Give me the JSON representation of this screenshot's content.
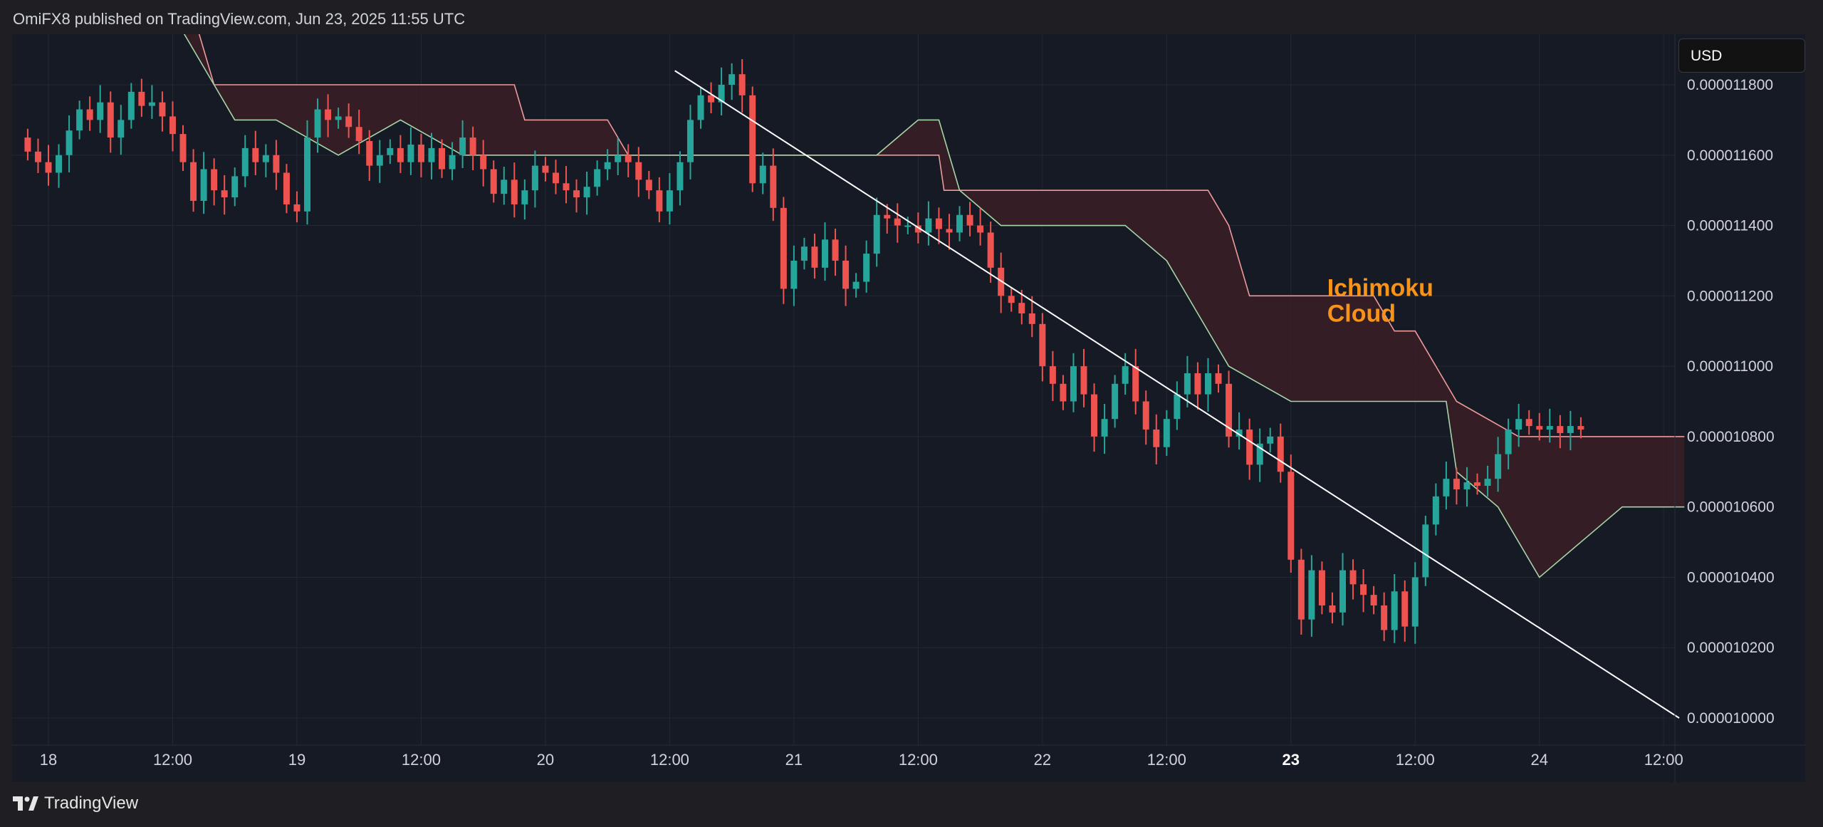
{
  "header": {
    "publish_line": "OmiFX8 published on TradingView.com, Jun 23, 2025 11:55 UTC"
  },
  "currency_label": "USD",
  "brand": {
    "name": "TradingView",
    "icon": "tradingview-logo-icon"
  },
  "colors": {
    "background": "#161a25",
    "page": "#1f1f23",
    "up": "#26a69a",
    "down": "#ef5350",
    "cloud_fill": "#3a1f26",
    "span_a": "#a5d6a7",
    "span_b": "#ef9a9a",
    "trendline": "#ffffff",
    "annotation": "#f7931a",
    "grid": "#242832"
  },
  "chart_data": {
    "type": "candlestick",
    "title": "",
    "xlabel": "",
    "ylabel": "",
    "ylim": [
      9.9e-07,
      1.2e-06
    ],
    "grid": true,
    "y_ticks": [
      "0.000011800",
      "0.000011600",
      "0.000011400",
      "0.000011200",
      "0.000011000",
      "0.000010800",
      "0.000010600",
      "0.000010400",
      "0.000010200",
      "0.000010000"
    ],
    "y_tick_values": [
      1.18e-05,
      1.16e-05,
      1.14e-05,
      1.12e-05,
      1.1e-05,
      1.08e-05,
      1.06e-05,
      1.04e-05,
      1.02e-05,
      1e-05
    ],
    "x_ticks": [
      {
        "label": "18",
        "t": 0,
        "bold": false
      },
      {
        "label": "12:00",
        "t": 12,
        "bold": false
      },
      {
        "label": "19",
        "t": 24,
        "bold": false
      },
      {
        "label": "12:00",
        "t": 36,
        "bold": false
      },
      {
        "label": "20",
        "t": 48,
        "bold": false
      },
      {
        "label": "12:00",
        "t": 60,
        "bold": false
      },
      {
        "label": "21",
        "t": 72,
        "bold": false
      },
      {
        "label": "12:00",
        "t": 84,
        "bold": false
      },
      {
        "label": "22",
        "t": 96,
        "bold": false
      },
      {
        "label": "12:00",
        "t": 108,
        "bold": false
      },
      {
        "label": "23",
        "t": 120,
        "bold": true
      },
      {
        "label": "12:00",
        "t": 132,
        "bold": false
      },
      {
        "label": "24",
        "t": 144,
        "bold": false
      },
      {
        "label": "12:00",
        "t": 156,
        "bold": false
      }
    ],
    "x_unit": "hours since Jun 18 00:00",
    "candle_interval_hours": 1,
    "candles_start_t": -2,
    "ohlc_close": [
      1.161e-05,
      1.158e-05,
      1.155e-05,
      1.16e-05,
      1.167e-05,
      1.173e-05,
      1.17e-05,
      1.175e-05,
      1.165e-05,
      1.17e-05,
      1.178e-05,
      1.174e-05,
      1.175e-05,
      1.171e-05,
      1.166e-05,
      1.158e-05,
      1.147e-05,
      1.156e-05,
      1.15e-05,
      1.148e-05,
      1.154e-05,
      1.162e-05,
      1.158e-05,
      1.16e-05,
      1.155e-05,
      1.146e-05,
      1.144e-05,
      1.165e-05,
      1.173e-05,
      1.17e-05,
      1.171e-05,
      1.168e-05,
      1.164e-05,
      1.157e-05,
      1.16e-05,
      1.162e-05,
      1.158e-05,
      1.163e-05,
      1.158e-05,
      1.162e-05,
      1.156e-05,
      1.16e-05,
      1.165e-05,
      1.16e-05,
      1.156e-05,
      1.149e-05,
      1.153e-05,
      1.146e-05,
      1.15e-05,
      1.157e-05,
      1.155e-05,
      1.152e-05,
      1.15e-05,
      1.148e-05,
      1.151e-05,
      1.156e-05,
      1.158e-05,
      1.16e-05,
      1.158e-05,
      1.153e-05,
      1.15e-05,
      1.144e-05,
      1.15e-05,
      1.158e-05,
      1.17e-05,
      1.177e-05,
      1.175e-05,
      1.18e-05,
      1.183e-05,
      1.177e-05,
      1.152e-05,
      1.157e-05,
      1.145e-05,
      1.122e-05,
      1.13e-05,
      1.134e-05,
      1.128e-05,
      1.136e-05,
      1.13e-05,
      1.122e-05,
      1.124e-05,
      1.132e-05,
      1.143e-05,
      1.142e-05,
      1.14e-05,
      1.14e-05,
      1.138e-05,
      1.142e-05,
      1.139e-05,
      1.138e-05,
      1.143e-05,
      1.14e-05,
      1.138e-05,
      1.128e-05,
      1.12e-05,
      1.118e-05,
      1.115e-05,
      1.112e-05,
      1.1e-05,
      1.095e-05,
      1.09e-05,
      1.1e-05,
      1.092e-05,
      1.08e-05,
      1.085e-05,
      1.095e-05,
      1.1e-05,
      1.09e-05,
      1.082e-05,
      1.077e-05,
      1.085e-05,
      1.092e-05,
      1.098e-05,
      1.092e-05,
      1.098e-05,
      1.095e-05,
      1.08e-05,
      1.082e-05,
      1.072e-05,
      1.078e-05,
      1.08e-05,
      1.07e-05,
      1.045e-05,
      1.028e-05,
      1.042e-05,
      1.032e-05,
      1.03e-05,
      1.042e-05,
      1.038e-05,
      1.035e-05,
      1.032e-05,
      1.025e-05,
      1.036e-05,
      1.026e-05,
      1.04e-05,
      1.055e-05,
      1.063e-05,
      1.068e-05,
      1.065e-05,
      1.067e-05,
      1.066e-05,
      1.068e-05,
      1.075e-05,
      1.082e-05,
      1.085e-05,
      1.083e-05,
      1.082e-05,
      1.083e-05,
      1.081e-05,
      1.083e-05,
      1.082e-05
    ],
    "ichimoku": {
      "leading_span_a": [
        [
          -2,
          1.21e-05
        ],
        [
          -1,
          1.2e-05
        ],
        [
          2,
          1.2e-05
        ],
        [
          12,
          1.2e-05
        ],
        [
          16,
          1.18e-05
        ],
        [
          18,
          1.17e-05
        ],
        [
          22,
          1.17e-05
        ],
        [
          28,
          1.16e-05
        ],
        [
          34,
          1.17e-05
        ],
        [
          40,
          1.16e-05
        ],
        [
          46,
          1.16e-05
        ],
        [
          52,
          1.16e-05
        ],
        [
          58,
          1.16e-05
        ],
        [
          62,
          1.16e-05
        ],
        [
          66,
          1.16e-05
        ],
        [
          72,
          1.16e-05
        ],
        [
          78,
          1.16e-05
        ],
        [
          80,
          1.16e-05
        ],
        [
          84,
          1.17e-05
        ],
        [
          86,
          1.17e-05
        ],
        [
          87,
          1.16e-05
        ],
        [
          88,
          1.15e-05
        ],
        [
          92,
          1.14e-05
        ],
        [
          94,
          1.14e-05
        ],
        [
          104,
          1.14e-05
        ],
        [
          108,
          1.13e-05
        ],
        [
          112,
          1.11e-05
        ],
        [
          114,
          1.1e-05
        ],
        [
          120,
          1.09e-05
        ],
        [
          124,
          1.09e-05
        ],
        [
          130,
          1.09e-05
        ],
        [
          135,
          1.09e-05
        ],
        [
          136,
          1.07e-05
        ],
        [
          140,
          1.06e-05
        ],
        [
          144,
          1.04e-05
        ],
        [
          148,
          1.05e-05
        ],
        [
          152,
          1.06e-05
        ],
        [
          156,
          1.06e-05
        ],
        [
          158,
          1.06e-05
        ]
      ],
      "leading_span_b": [
        [
          -2,
          1.21e-05
        ],
        [
          2,
          1.2e-05
        ],
        [
          14,
          1.2e-05
        ],
        [
          15,
          1.19e-05
        ],
        [
          16,
          1.18e-05
        ],
        [
          18,
          1.18e-05
        ],
        [
          26,
          1.18e-05
        ],
        [
          42,
          1.18e-05
        ],
        [
          45,
          1.18e-05
        ],
        [
          46,
          1.17e-05
        ],
        [
          50,
          1.17e-05
        ],
        [
          54,
          1.17e-05
        ],
        [
          56,
          1.16e-05
        ],
        [
          60,
          1.16e-05
        ],
        [
          66,
          1.16e-05
        ],
        [
          72,
          1.16e-05
        ],
        [
          78,
          1.16e-05
        ],
        [
          84,
          1.16e-05
        ],
        [
          86,
          1.16e-05
        ],
        [
          86.5,
          1.15e-05
        ],
        [
          92,
          1.15e-05
        ],
        [
          112,
          1.15e-05
        ],
        [
          114,
          1.14e-05
        ],
        [
          116,
          1.12e-05
        ],
        [
          122,
          1.12e-05
        ],
        [
          128,
          1.12e-05
        ],
        [
          130,
          1.11e-05
        ],
        [
          132,
          1.11e-05
        ],
        [
          134,
          1.1e-05
        ],
        [
          136,
          1.09e-05
        ],
        [
          142,
          1.08e-05
        ],
        [
          148,
          1.08e-05
        ],
        [
          156,
          1.08e-05
        ],
        [
          158,
          1.08e-05
        ]
      ]
    },
    "trendline": {
      "from": [
        60.5,
        1.184e-05
      ],
      "to": [
        157.5,
        1e-05
      ]
    },
    "annotations": [
      {
        "text_lines": [
          "Ichimoku",
          "Cloud"
        ],
        "t": 123.5,
        "y": 1.12e-05,
        "color": "#f7931a"
      }
    ]
  }
}
